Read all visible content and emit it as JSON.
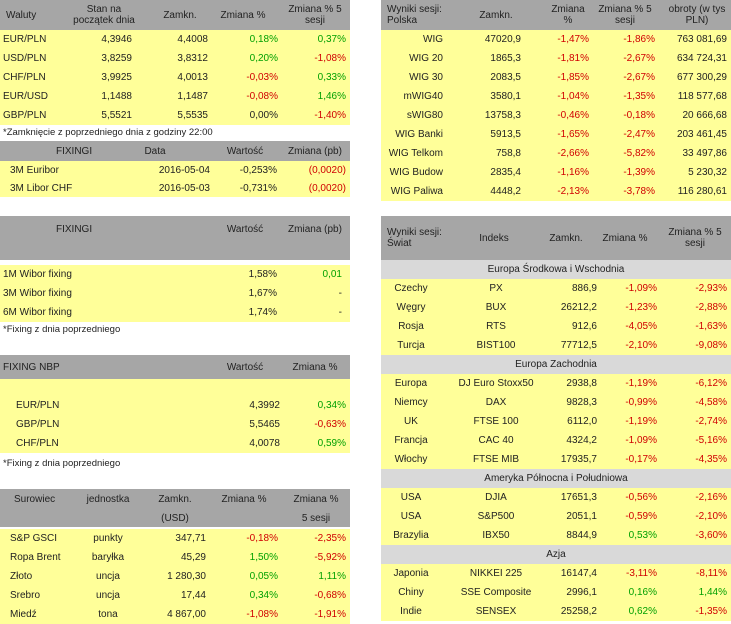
{
  "waluty": {
    "headers": [
      "Waluty",
      "Stan na początek dnia",
      "Zamkn.",
      "Zmiana %",
      "Zmiana % 5 sesji"
    ],
    "rows": [
      [
        "EUR/PLN",
        "4,3946",
        "4,4008",
        "0,18%",
        "0,37%"
      ],
      [
        "USD/PLN",
        "3,8259",
        "3,8312",
        "0,20%",
        "-1,08%"
      ],
      [
        "CHF/PLN",
        "3,9925",
        "4,0013",
        "-0,03%",
        "0,33%"
      ],
      [
        "EUR/USD",
        "1,1488",
        "1,1487",
        "-0,08%",
        "1,46%"
      ],
      [
        "GBP/PLN",
        "5,5521",
        "5,5535",
        "0,00%",
        "-1,40%"
      ]
    ],
    "note": "*Zamknięcie z poprzedniego dnia z godziny 22:00"
  },
  "fixingi1": {
    "headers": [
      "FIXINGI",
      "Data",
      "Wartość",
      "Zmiana (pb)"
    ],
    "rows": [
      [
        "3M Euribor",
        "2016-05-04",
        "-0,253%",
        "(0,0020)"
      ],
      [
        "3M Libor CHF",
        "2016-05-03",
        "-0,731%",
        "(0,0020)"
      ]
    ]
  },
  "fixingi2": {
    "headers": [
      "FIXINGI",
      "Wartość",
      "Zmiana (pb)"
    ],
    "rows": [
      [
        "1M Wibor fixing",
        "1,58%",
        "0,01"
      ],
      [
        "3M Wibor fixing",
        "1,67%",
        "-"
      ],
      [
        "6M Wibor fixing",
        "1,74%",
        "-"
      ]
    ],
    "note": "*Fixing z dnia poprzedniego"
  },
  "nbp": {
    "headers": [
      "FIXING NBP",
      "Wartość",
      "Zmiana %"
    ],
    "rows": [
      [
        "EUR/PLN",
        "4,3992",
        "0,34%"
      ],
      [
        "GBP/PLN",
        "5,5465",
        "-0,63%"
      ],
      [
        "CHF/PLN",
        "4,0078",
        "0,59%"
      ]
    ],
    "note": "*Fixing z dnia poprzedniego"
  },
  "surowce": {
    "headers": [
      "Surowiec",
      "jednostka",
      "Zamkn.",
      "Zmiana %",
      "Zmiana %"
    ],
    "subheaders": [
      "(USD)",
      "5 sesji"
    ],
    "rows": [
      [
        "S&P GSCI",
        "punkty",
        "347,71",
        "-0,18%",
        "-2,35%"
      ],
      [
        "Ropa Brent",
        "baryłka",
        "45,29",
        "1,50%",
        "-5,92%"
      ],
      [
        "Złoto",
        "uncja",
        "1 280,30",
        "0,05%",
        "1,11%"
      ],
      [
        "Srebro",
        "uncja",
        "17,44",
        "0,34%",
        "-0,68%"
      ],
      [
        "Miedź",
        "tona",
        "4 867,00",
        "-1,08%",
        "-1,91%"
      ]
    ]
  },
  "polska": {
    "headers": [
      "Wyniki sesji: Polska",
      "Zamkn.",
      "Zmiana %",
      "Zmiana % 5 sesji",
      "obroty (w tys PLN)"
    ],
    "rows": [
      [
        "WIG",
        "47020,9",
        "-1,47%",
        "-1,86%",
        "763 081,69"
      ],
      [
        "WIG 20",
        "1865,3",
        "-1,81%",
        "-2,67%",
        "634 724,31"
      ],
      [
        "WIG 30",
        "2083,5",
        "-1,85%",
        "-2,67%",
        "677 300,29"
      ],
      [
        "mWIG40",
        "3580,1",
        "-1,04%",
        "-1,35%",
        "118 577,68"
      ],
      [
        "sWIG80",
        "13758,3",
        "-0,46%",
        "-0,18%",
        "20 666,68"
      ],
      [
        "WIG Banki",
        "5913,5",
        "-1,65%",
        "-2,47%",
        "203 461,45"
      ],
      [
        "WIG Telkom",
        "758,8",
        "-2,66%",
        "-5,82%",
        "33 497,86"
      ],
      [
        "WIG Budow",
        "2835,4",
        "-1,16%",
        "-1,39%",
        "5 230,32"
      ],
      [
        "WIG Paliwa",
        "4448,2",
        "-2,13%",
        "-3,78%",
        "116 280,61"
      ]
    ]
  },
  "swiat": {
    "headers": [
      "Wyniki sesji: Świat",
      "Indeks",
      "Zamkn.",
      "Zmiana %",
      "Zmiana % 5 sesji"
    ],
    "sections": [
      {
        "title": "Europa Środkowa i Wschodnia",
        "rows": [
          [
            "Czechy",
            "PX",
            "886,9",
            "-1,09%",
            "-2,93%"
          ],
          [
            "Węgry",
            "BUX",
            "26212,2",
            "-1,23%",
            "-2,88%"
          ],
          [
            "Rosja",
            "RTS",
            "912,6",
            "-4,05%",
            "-1,63%"
          ],
          [
            "Turcja",
            "BIST100",
            "77712,5",
            "-2,10%",
            "-9,08%"
          ]
        ]
      },
      {
        "title": "Europa Zachodnia",
        "rows": [
          [
            "Europa",
            "DJ Euro Stoxx50",
            "2938,8",
            "-1,19%",
            "-6,12%"
          ],
          [
            "Niemcy",
            "DAX",
            "9828,3",
            "-0,99%",
            "-4,58%"
          ],
          [
            "UK",
            "FTSE 100",
            "6112,0",
            "-1,19%",
            "-2,74%"
          ],
          [
            "Francja",
            "CAC 40",
            "4324,2",
            "-1,09%",
            "-5,16%"
          ],
          [
            "Włochy",
            "FTSE MIB",
            "17935,7",
            "-0,17%",
            "-4,35%"
          ]
        ]
      },
      {
        "title": "Ameryka Północna i Południowa",
        "rows": [
          [
            "USA",
            "DJIA",
            "17651,3",
            "-0,56%",
            "-2,16%"
          ],
          [
            "USA",
            "S&P500",
            "2051,1",
            "-0,59%",
            "-2,10%"
          ],
          [
            "Brazylia",
            "IBX50",
            "8844,9",
            "0,53%",
            "-3,60%"
          ]
        ]
      },
      {
        "title": "Azja",
        "rows": [
          [
            "Japonia",
            "NIKKEI 225",
            "16147,4",
            "-3,11%",
            "-8,11%"
          ],
          [
            "Chiny",
            "SSE Composite",
            "2996,1",
            "0,16%",
            "1,44%"
          ],
          [
            "Indie",
            "SENSEX",
            "25258,2",
            "0,62%",
            "-1,35%"
          ]
        ]
      }
    ]
  },
  "colors": {
    "header": "#a6a6a6",
    "row": "#ffff99",
    "section": "#d9d9d9",
    "positive": "#00a000",
    "negative": "#d00000"
  }
}
